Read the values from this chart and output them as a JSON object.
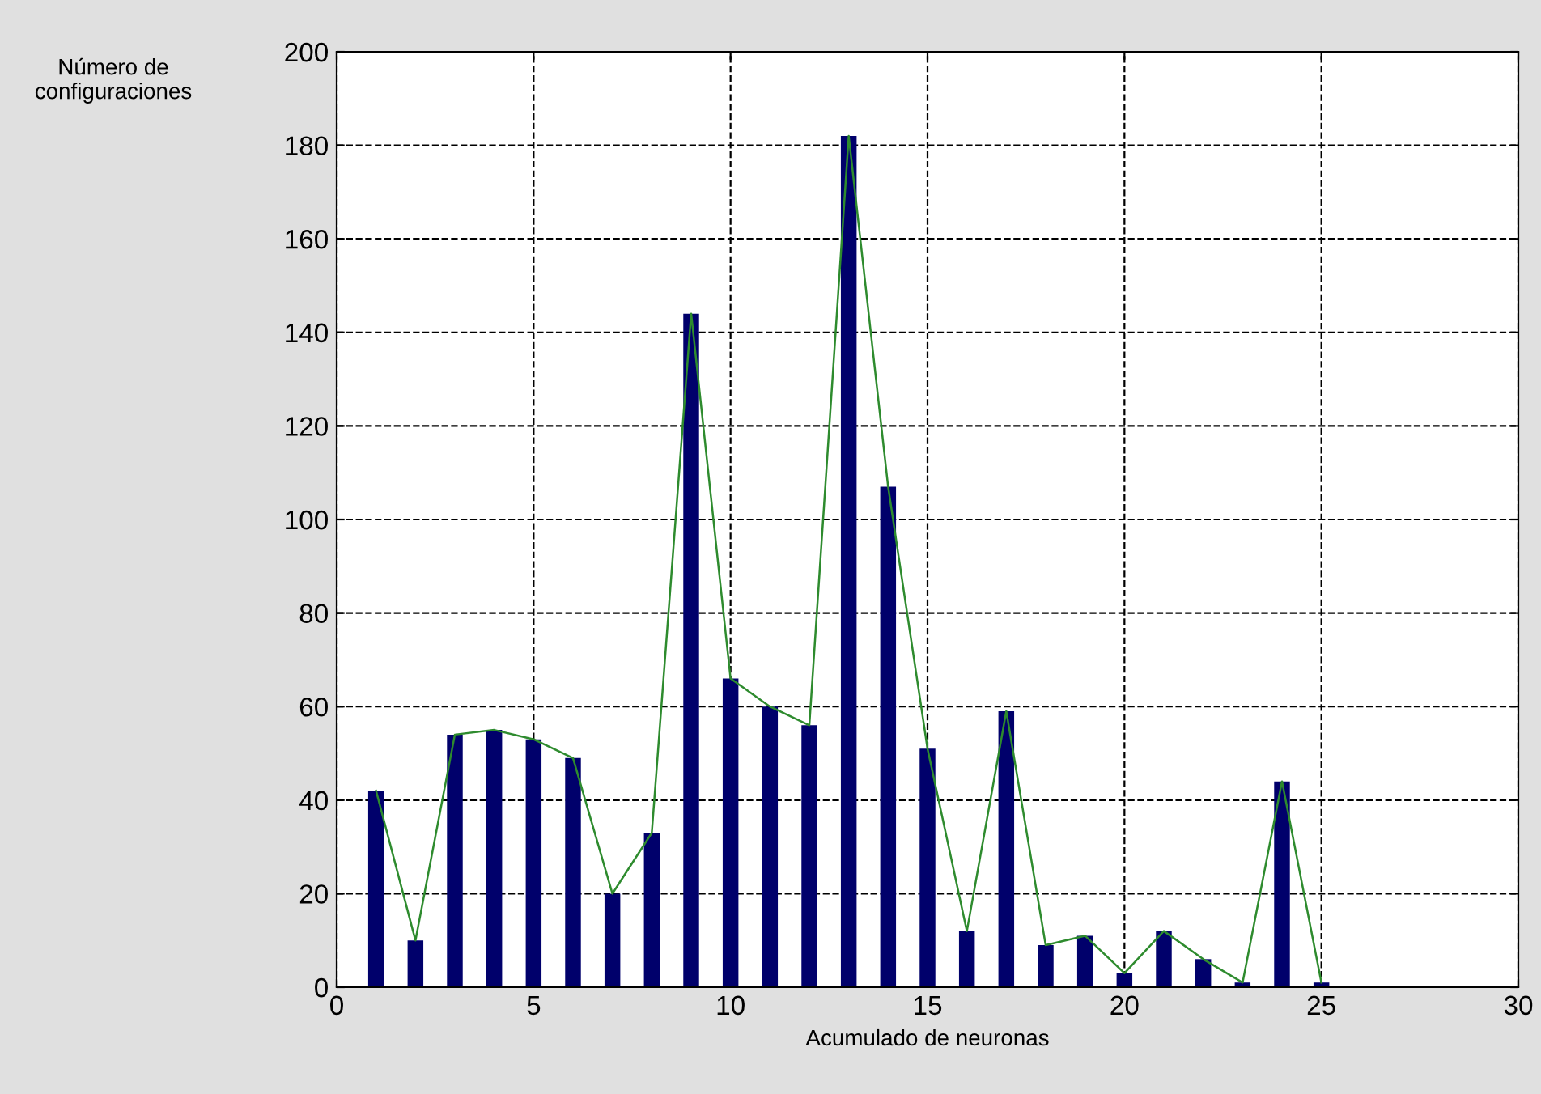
{
  "chart_data": {
    "type": "bar",
    "xlabel": "Acumulado de neuronas",
    "ylabel": "Número de\nconfiguraciones",
    "x": [
      1,
      2,
      3,
      4,
      5,
      6,
      7,
      8,
      9,
      10,
      11,
      12,
      13,
      14,
      15,
      16,
      17,
      18,
      19,
      20,
      21,
      22,
      23,
      24,
      25
    ],
    "series": [
      {
        "color": "#00006b",
        "values": [
          42,
          10,
          54,
          55,
          53,
          49,
          20,
          33,
          144,
          66,
          60,
          56,
          182,
          107,
          51,
          12,
          59,
          9,
          11,
          3,
          12,
          6,
          1,
          44,
          1
        ]
      },
      {
        "type": "line",
        "color": "#2e8b2e",
        "values": [
          42,
          10,
          54,
          55,
          53,
          49,
          20,
          33,
          144,
          66,
          60,
          56,
          182,
          107,
          51,
          12,
          59,
          9,
          11,
          3,
          12,
          6,
          1,
          44,
          1
        ]
      }
    ],
    "xlim": [
      0,
      30
    ],
    "xticks": [
      0,
      5,
      10,
      15,
      20,
      25,
      30
    ],
    "ylim": [
      0,
      200
    ],
    "yticks": [
      0,
      20,
      40,
      60,
      80,
      100,
      120,
      140,
      160,
      180,
      200
    ],
    "grid": true,
    "line_style": "solid",
    "marker": "none"
  }
}
